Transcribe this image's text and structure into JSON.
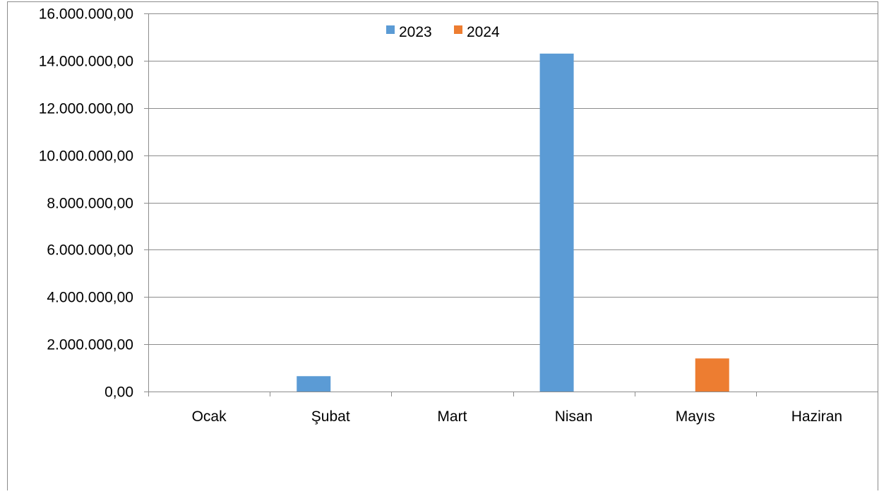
{
  "chart_data": {
    "type": "bar",
    "categories": [
      "Ocak",
      "Şubat",
      "Mart",
      "Nisan",
      "Mayıs",
      "Haziran"
    ],
    "series": [
      {
        "name": "2023",
        "color": "#5b9bd5",
        "values": [
          0,
          650000,
          0,
          14300000,
          0,
          0
        ]
      },
      {
        "name": "2024",
        "color": "#ed7d31",
        "values": [
          0,
          0,
          0,
          0,
          1400000,
          0
        ]
      }
    ],
    "y_ticks": [
      {
        "value": 0,
        "label": "0,00"
      },
      {
        "value": 2000000,
        "label": "2.000.000,00"
      },
      {
        "value": 4000000,
        "label": "4.000.000,00"
      },
      {
        "value": 6000000,
        "label": "6.000.000,00"
      },
      {
        "value": 8000000,
        "label": "8.000.000,00"
      },
      {
        "value": 10000000,
        "label": "10.000.000,00"
      },
      {
        "value": 12000000,
        "label": "12.000.000,00"
      },
      {
        "value": 14000000,
        "label": "14.000.000,00"
      },
      {
        "value": 16000000,
        "label": "16.000.000,00"
      }
    ],
    "ylim": [
      0,
      16000000
    ],
    "grid": true,
    "legend_position": "top-center",
    "title": "",
    "xlabel": "",
    "ylabel": ""
  }
}
